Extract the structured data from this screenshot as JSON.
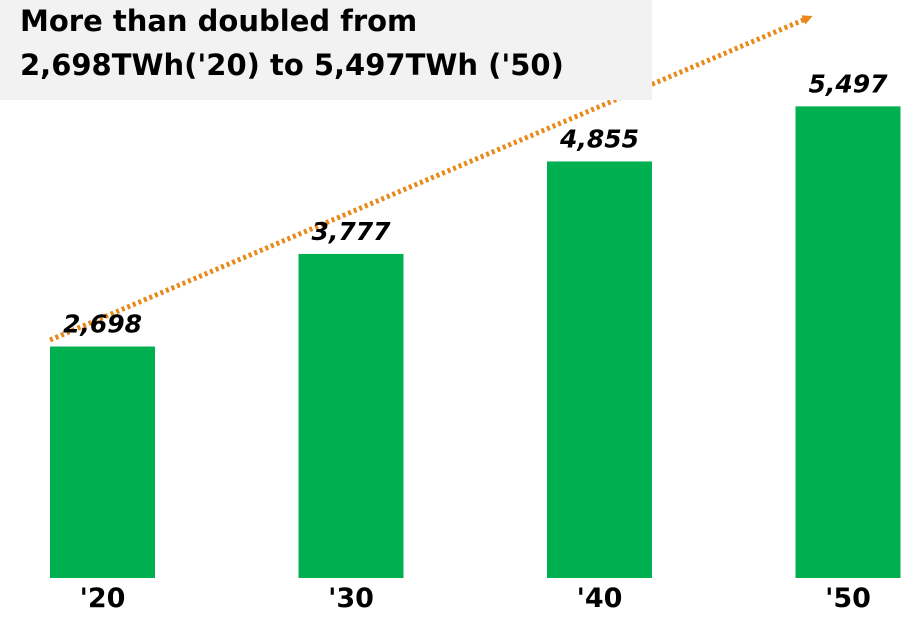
{
  "chart_data": {
    "type": "bar",
    "categories": [
      "'20",
      "'30",
      "'40",
      "'50"
    ],
    "values": [
      2698,
      3777,
      4855,
      5497
    ],
    "value_labels": [
      "2,698",
      "3,777",
      "4,855",
      "5,497"
    ],
    "title": "",
    "xlabel": "",
    "ylabel": "",
    "ylim": [
      0,
      5700
    ],
    "grid": false,
    "legend": "none",
    "annotation": {
      "lines": [
        "More than doubled from",
        "2,698TWh('20) to 5,497TWh ('50)"
      ],
      "trend_arrow": "dotted upward trend arrow from '20 to '50"
    },
    "colors": {
      "bar": "#00b050",
      "trend_arrow": "#e8891a",
      "annotation_background": "#f2f2f2"
    }
  }
}
